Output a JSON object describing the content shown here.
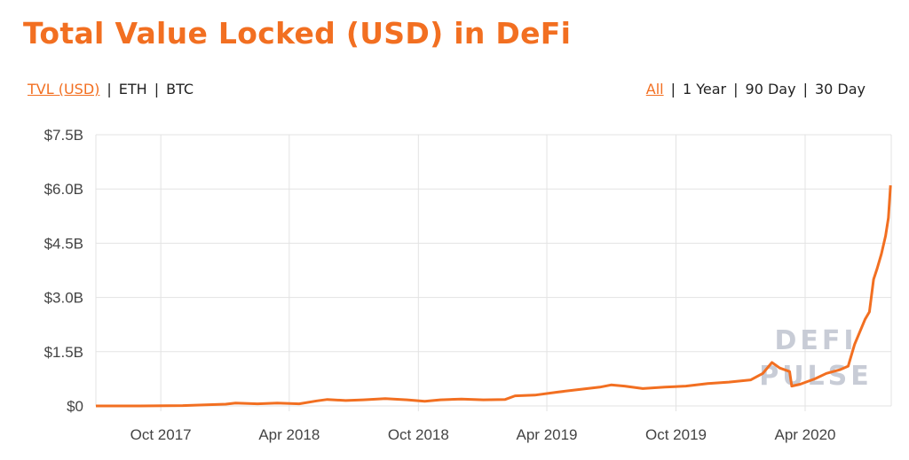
{
  "header": {
    "title": "Total Value Locked (USD) in DeFi"
  },
  "toggles": {
    "metric": [
      {
        "label": "TVL (USD)",
        "active": true
      },
      {
        "label": "ETH",
        "active": false
      },
      {
        "label": "BTC",
        "active": false
      }
    ],
    "range": [
      {
        "label": "All",
        "active": true
      },
      {
        "label": "1 Year",
        "active": false
      },
      {
        "label": "90 Day",
        "active": false
      },
      {
        "label": "30 Day",
        "active": false
      }
    ]
  },
  "watermark": [
    "DEFI",
    "PULSE"
  ],
  "colors": {
    "accent": "#f26f21",
    "grid": "#e3e3e3"
  },
  "chart_data": {
    "type": "line",
    "title": "Total Value Locked (USD) in DeFi",
    "xlabel": "",
    "ylabel": "",
    "ylim": [
      0,
      7.5
    ],
    "xlim": [
      "2017-07-01",
      "2020-08-01"
    ],
    "grid": true,
    "y_ticks": [
      {
        "value": 0,
        "label": "$0"
      },
      {
        "value": 1.5,
        "label": "$1.5B"
      },
      {
        "value": 3.0,
        "label": "$3.0B"
      },
      {
        "value": 4.5,
        "label": "$4.5B"
      },
      {
        "value": 6.0,
        "label": "$6.0B"
      },
      {
        "value": 7.5,
        "label": "$7.5B"
      }
    ],
    "x_ticks": [
      {
        "date": "2017-10-01",
        "label": "Oct 2017"
      },
      {
        "date": "2018-04-01",
        "label": "Apr 2018"
      },
      {
        "date": "2018-10-01",
        "label": "Oct 2018"
      },
      {
        "date": "2019-04-01",
        "label": "Apr 2019"
      },
      {
        "date": "2019-10-01",
        "label": "Oct 2019"
      },
      {
        "date": "2020-04-01",
        "label": "Apr 2020"
      }
    ],
    "series": [
      {
        "unit": "USD billions",
        "points": [
          [
            "2017-07-01",
            0.0
          ],
          [
            "2017-09-01",
            0.0
          ],
          [
            "2017-11-01",
            0.01
          ],
          [
            "2018-01-01",
            0.05
          ],
          [
            "2018-01-15",
            0.08
          ],
          [
            "2018-02-15",
            0.06
          ],
          [
            "2018-03-15",
            0.08
          ],
          [
            "2018-04-15",
            0.06
          ],
          [
            "2018-05-10",
            0.14
          ],
          [
            "2018-05-25",
            0.18
          ],
          [
            "2018-06-20",
            0.15
          ],
          [
            "2018-07-15",
            0.17
          ],
          [
            "2018-08-15",
            0.2
          ],
          [
            "2018-09-15",
            0.17
          ],
          [
            "2018-10-10",
            0.13
          ],
          [
            "2018-11-01",
            0.17
          ],
          [
            "2018-12-01",
            0.19
          ],
          [
            "2019-01-01",
            0.17
          ],
          [
            "2019-02-01",
            0.18
          ],
          [
            "2019-02-15",
            0.28
          ],
          [
            "2019-03-15",
            0.3
          ],
          [
            "2019-04-15",
            0.38
          ],
          [
            "2019-05-15",
            0.45
          ],
          [
            "2019-06-15",
            0.52
          ],
          [
            "2019-07-01",
            0.58
          ],
          [
            "2019-07-20",
            0.55
          ],
          [
            "2019-08-15",
            0.48
          ],
          [
            "2019-09-15",
            0.52
          ],
          [
            "2019-10-15",
            0.55
          ],
          [
            "2019-11-15",
            0.62
          ],
          [
            "2019-12-15",
            0.66
          ],
          [
            "2020-01-15",
            0.72
          ],
          [
            "2020-02-01",
            0.9
          ],
          [
            "2020-02-14",
            1.2
          ],
          [
            "2020-02-25",
            1.05
          ],
          [
            "2020-03-10",
            0.95
          ],
          [
            "2020-03-13",
            0.55
          ],
          [
            "2020-03-25",
            0.6
          ],
          [
            "2020-04-15",
            0.75
          ],
          [
            "2020-05-01",
            0.9
          ],
          [
            "2020-05-20",
            1.0
          ],
          [
            "2020-06-01",
            1.1
          ],
          [
            "2020-06-10",
            1.7
          ],
          [
            "2020-06-25",
            2.4
          ],
          [
            "2020-07-01",
            2.6
          ],
          [
            "2020-07-07",
            3.5
          ],
          [
            "2020-07-12",
            3.8
          ],
          [
            "2020-07-18",
            4.2
          ],
          [
            "2020-07-24",
            4.7
          ],
          [
            "2020-07-28",
            5.2
          ],
          [
            "2020-07-31",
            6.1
          ]
        ]
      }
    ]
  }
}
